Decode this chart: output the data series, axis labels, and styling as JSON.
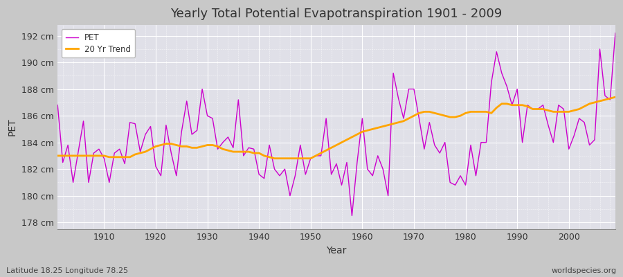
{
  "title": "Yearly Total Potential Evapotranspiration 1901 - 2009",
  "xlabel": "Year",
  "ylabel": "PET",
  "subtitle": "Latitude 18.25 Longitude 78.25",
  "watermark": "worldspecies.org",
  "pet_color": "#cc00cc",
  "trend_color": "#ffa500",
  "fig_facecolor": "#c8c8c8",
  "plot_facecolor": "#e0e0e8",
  "ylim": [
    177.5,
    192.8
  ],
  "yticks": [
    178,
    180,
    182,
    184,
    186,
    188,
    190,
    192
  ],
  "ytick_labels": [
    "178 cm",
    "180 cm",
    "182 cm",
    "184 cm",
    "186 cm",
    "188 cm",
    "190 cm",
    "192 cm"
  ],
  "xticks": [
    1910,
    1920,
    1930,
    1940,
    1950,
    1960,
    1970,
    1980,
    1990,
    2000
  ],
  "years": [
    1901,
    1902,
    1903,
    1904,
    1905,
    1906,
    1907,
    1908,
    1909,
    1910,
    1911,
    1912,
    1913,
    1914,
    1915,
    1916,
    1917,
    1918,
    1919,
    1920,
    1921,
    1922,
    1923,
    1924,
    1925,
    1926,
    1927,
    1928,
    1929,
    1930,
    1931,
    1932,
    1933,
    1934,
    1935,
    1936,
    1937,
    1938,
    1939,
    1940,
    1941,
    1942,
    1943,
    1944,
    1945,
    1946,
    1947,
    1948,
    1949,
    1950,
    1951,
    1952,
    1953,
    1954,
    1955,
    1956,
    1957,
    1958,
    1959,
    1960,
    1961,
    1962,
    1963,
    1964,
    1965,
    1966,
    1967,
    1968,
    1969,
    1970,
    1971,
    1972,
    1973,
    1974,
    1975,
    1976,
    1977,
    1978,
    1979,
    1980,
    1981,
    1982,
    1983,
    1984,
    1985,
    1986,
    1987,
    1988,
    1989,
    1990,
    1991,
    1992,
    1993,
    1994,
    1995,
    1996,
    1997,
    1998,
    1999,
    2000,
    2001,
    2002,
    2003,
    2004,
    2005,
    2006,
    2007,
    2008,
    2009
  ],
  "pet_values": [
    186.8,
    182.5,
    183.8,
    181.0,
    183.3,
    185.6,
    181.0,
    183.2,
    183.5,
    182.8,
    181.0,
    183.2,
    183.5,
    182.4,
    185.5,
    185.4,
    183.3,
    184.6,
    185.2,
    182.2,
    181.5,
    185.3,
    183.2,
    181.5,
    184.8,
    187.1,
    184.6,
    184.9,
    188.0,
    186.0,
    185.8,
    183.5,
    184.0,
    184.4,
    183.6,
    187.2,
    183.0,
    183.6,
    183.5,
    181.6,
    181.3,
    183.8,
    182.0,
    181.5,
    182.0,
    180.0,
    181.5,
    183.8,
    181.6,
    182.8,
    183.0,
    183.0,
    185.8,
    181.6,
    182.4,
    180.8,
    182.5,
    178.5,
    182.5,
    185.8,
    182.0,
    181.5,
    183.0,
    182.0,
    180.0,
    189.2,
    187.3,
    185.8,
    188.0,
    188.0,
    185.8,
    183.5,
    185.5,
    183.8,
    183.2,
    184.0,
    181.0,
    180.8,
    181.5,
    180.8,
    183.8,
    181.5,
    184.0,
    184.0,
    188.5,
    190.8,
    189.2,
    188.2,
    186.8,
    188.0,
    184.0,
    186.8,
    186.5,
    186.5,
    186.8,
    185.3,
    184.0,
    186.8,
    186.5,
    183.5,
    184.5,
    185.8,
    185.5,
    183.8,
    184.2,
    191.0,
    187.5,
    187.2,
    192.2
  ],
  "trend_values": [
    183.0,
    183.0,
    183.0,
    183.0,
    183.0,
    183.0,
    183.0,
    183.0,
    183.0,
    183.0,
    182.9,
    182.9,
    182.9,
    182.9,
    182.9,
    183.1,
    183.2,
    183.3,
    183.5,
    183.7,
    183.8,
    183.9,
    183.9,
    183.8,
    183.7,
    183.7,
    183.6,
    183.6,
    183.7,
    183.8,
    183.8,
    183.7,
    183.5,
    183.4,
    183.3,
    183.3,
    183.3,
    183.3,
    183.2,
    183.2,
    183.0,
    182.9,
    182.8,
    182.8,
    182.8,
    182.8,
    182.8,
    182.8,
    182.8,
    182.8,
    183.0,
    183.2,
    183.4,
    183.6,
    183.8,
    184.0,
    184.2,
    184.4,
    184.6,
    184.8,
    184.9,
    185.0,
    185.1,
    185.2,
    185.3,
    185.4,
    185.5,
    185.6,
    185.8,
    186.0,
    186.2,
    186.3,
    186.3,
    186.2,
    186.1,
    186.0,
    185.9,
    185.9,
    186.0,
    186.2,
    186.3,
    186.3,
    186.3,
    186.3,
    186.2,
    186.6,
    186.9,
    186.9,
    186.8,
    186.8,
    186.8,
    186.7,
    186.5,
    186.5,
    186.5,
    186.4,
    186.3,
    186.3,
    186.3,
    186.3,
    186.4,
    186.5,
    186.7,
    186.9,
    187.0,
    187.1,
    187.2,
    187.3,
    187.4
  ]
}
